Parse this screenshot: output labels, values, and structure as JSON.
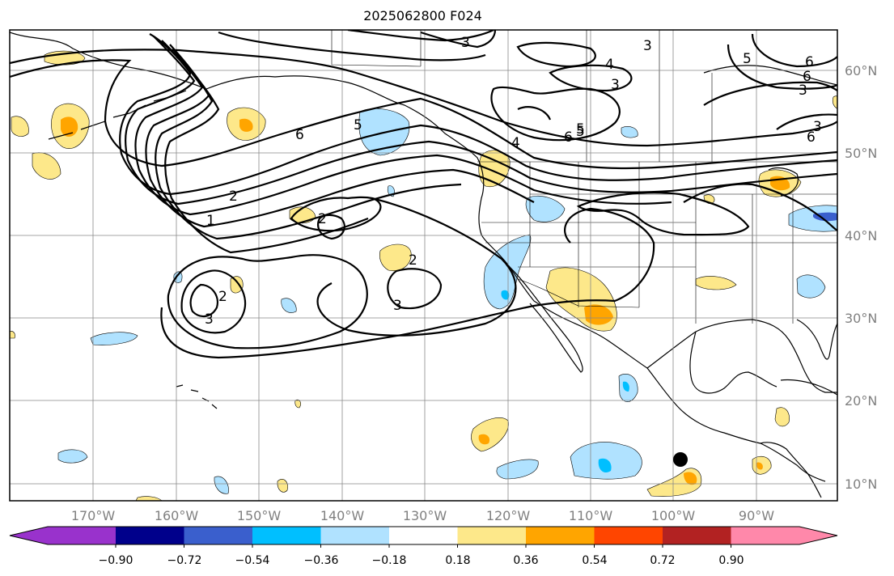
{
  "title": "2025062800 F024",
  "lon_labels": [
    "170°W",
    "160°W",
    "150°W",
    "140°W",
    "130°W",
    "120°W",
    "110°W",
    "100°W",
    "90°W"
  ],
  "lat_labels": [
    "60°N",
    "50°N",
    "40°N",
    "30°N",
    "20°N",
    "10°N"
  ],
  "colorbar": {
    "ticks": [
      "−0.90",
      "−0.72",
      "−0.54",
      "−0.36",
      "−0.18",
      "0.18",
      "0.36",
      "0.54",
      "0.72",
      "0.90"
    ],
    "colors": [
      "#9932cc",
      "#00008b",
      "#3a5fcd",
      "#00bfff",
      "#b0e2ff",
      "#ffffff",
      "#fde88a",
      "#ffa500",
      "#ff4500",
      "#b22222",
      "#ff88aa"
    ]
  },
  "contour_labels": [
    "3",
    "3",
    "4",
    "3",
    "5",
    "6",
    "5",
    "6",
    "4",
    "6",
    "5",
    "6",
    "3",
    "6",
    "2",
    "1",
    "5",
    "2",
    "2",
    "3",
    "2",
    "3",
    "3",
    "2"
  ],
  "marker": {
    "name": "black-dot",
    "lon": "≈99°W",
    "lat": "≈13°N"
  }
}
